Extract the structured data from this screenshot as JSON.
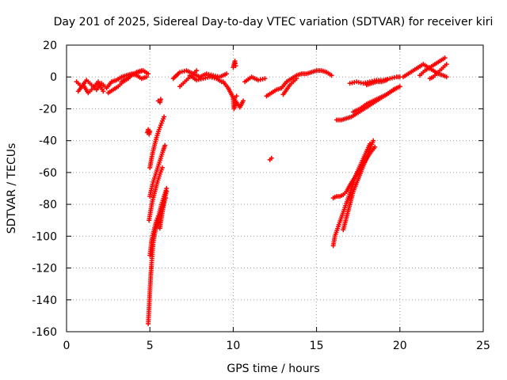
{
  "chart_data": {
    "type": "scatter",
    "title": "Day 201 of 2025, Sidereal Day-to-day VTEC variation (SDTVAR) for receiver kiri",
    "xlabel": "GPS time / hours",
    "ylabel": "SDTVAR / TECUs",
    "xlim": [
      0,
      25
    ],
    "ylim": [
      -160,
      20
    ],
    "x_ticks": [
      0,
      5,
      10,
      15,
      20,
      25
    ],
    "x_tick_labels": [
      "0",
      "5",
      "10",
      "15",
      "20",
      "25"
    ],
    "y_ticks": [
      -160,
      -140,
      -120,
      -100,
      -80,
      -60,
      -40,
      -20,
      0,
      20
    ],
    "y_tick_labels": [
      "-160",
      "-140",
      "-120",
      "-100",
      "-80",
      "-60",
      "-40",
      "-20",
      "0",
      "20"
    ],
    "grid": true,
    "marker": "plus",
    "color": "#ff0000",
    "segments": [
      {
        "x": [
          0.6,
          0.9,
          1.2,
          1.5,
          1.8,
          2.1,
          2.4,
          2.7,
          3.0,
          3.3,
          3.6,
          3.9,
          4.2,
          4.5,
          4.8
        ],
        "y": [
          -3,
          -6,
          -2,
          -5,
          -8,
          -4,
          -7,
          -3,
          -2,
          0,
          1,
          2,
          1,
          -1,
          0
        ]
      },
      {
        "x": [
          0.7,
          1.0,
          1.3,
          1.6,
          1.9,
          2.2
        ],
        "y": [
          -9,
          -5,
          -10,
          -7,
          -3,
          -9
        ]
      },
      {
        "x": [
          2.5,
          2.8,
          3.1,
          3.4,
          3.7,
          4.0,
          4.3,
          4.6,
          4.9
        ],
        "y": [
          -10,
          -8,
          -6,
          -3,
          -1,
          2,
          3,
          4,
          2
        ]
      },
      {
        "x": [
          3.3,
          3.6,
          3.9,
          4.2,
          4.5
        ],
        "y": [
          -3,
          -1,
          1,
          3,
          4
        ]
      },
      {
        "x": [
          5.0,
          4.95,
          4.9,
          4.85
        ],
        "y": [
          -34,
          -36,
          -33,
          -35
        ]
      },
      {
        "x": [
          5.5,
          5.6,
          5.65
        ],
        "y": [
          -15,
          -16,
          -14
        ]
      },
      {
        "x": [
          5.0,
          5.12,
          5.25,
          5.4,
          5.55,
          5.7,
          5.85
        ],
        "y": [
          -57,
          -50,
          -44,
          -38,
          -33,
          -29,
          -25
        ]
      },
      {
        "x": [
          5.0,
          5.1,
          5.2,
          5.35,
          5.5,
          5.65,
          5.8,
          5.9
        ],
        "y": [
          -75,
          -70,
          -66,
          -61,
          -56,
          -51,
          -46,
          -43
        ]
      },
      {
        "x": [
          4.95,
          5.05,
          5.15,
          5.3,
          5.45,
          5.6,
          5.75
        ],
        "y": [
          -90,
          -84,
          -78,
          -72,
          -66,
          -61,
          -57
        ]
      },
      {
        "x": [
          5.0,
          5.1,
          5.25,
          5.4,
          5.55,
          5.7,
          5.85,
          6.0
        ],
        "y": [
          -112,
          -103,
          -96,
          -90,
          -86,
          -80,
          -75,
          -70
        ]
      },
      {
        "x": [
          4.9,
          4.95,
          5.0,
          5.05,
          5.1,
          5.15,
          5.2,
          5.3,
          5.45,
          5.6,
          5.8,
          5.95
        ],
        "y": [
          -155,
          -145,
          -135,
          -125,
          -118,
          -110,
          -104,
          -98,
          -92,
          -86,
          -80,
          -76
        ]
      },
      {
        "x": [
          5.6,
          5.7,
          5.8,
          5.9,
          6.0
        ],
        "y": [
          -95,
          -88,
          -82,
          -76,
          -72
        ]
      },
      {
        "x": [
          6.4,
          6.8,
          7.2,
          7.6,
          8.0,
          8.4,
          8.8,
          9.2,
          9.6
        ],
        "y": [
          -1,
          3,
          4,
          2,
          0,
          2,
          1,
          0,
          2
        ]
      },
      {
        "x": [
          6.8,
          7.0,
          7.2,
          7.4,
          7.6,
          7.8
        ],
        "y": [
          -6,
          -4,
          -2,
          0,
          2,
          4
        ]
      },
      {
        "x": [
          7.4,
          7.8,
          8.2,
          8.6,
          9.0,
          9.3
        ],
        "y": [
          1,
          -2,
          -1,
          0,
          -1,
          -3
        ]
      },
      {
        "x": [
          9.4,
          9.55,
          9.7,
          9.85,
          10.0,
          10.2,
          10.4,
          10.6
        ],
        "y": [
          -3,
          -5,
          -7,
          -10,
          -13,
          -16,
          -19,
          -15
        ]
      },
      {
        "x": [
          10.0,
          10.05,
          10.1,
          10.15
        ],
        "y": [
          6,
          8,
          10,
          7
        ]
      },
      {
        "x": [
          10.1,
          10.05,
          10.0,
          10.2
        ],
        "y": [
          -18,
          -20,
          -14,
          -12
        ]
      },
      {
        "x": [
          10.7,
          11.1,
          11.5,
          11.9
        ],
        "y": [
          -3,
          0,
          -2,
          -1
        ]
      },
      {
        "x": [
          12.0,
          12.3,
          12.6,
          12.9,
          13.2,
          13.5,
          13.8,
          14.1,
          14.4,
          14.7,
          15.0,
          15.3,
          15.6,
          15.9
        ],
        "y": [
          -12,
          -10,
          -8,
          -7,
          -3,
          -1,
          1,
          2,
          2,
          3,
          4,
          4,
          3,
          1
        ]
      },
      {
        "x": [
          13.0,
          13.2,
          13.4,
          13.6,
          13.8
        ],
        "y": [
          -11,
          -8,
          -5,
          -3,
          -1
        ]
      },
      {
        "x": [
          12.2,
          12.3
        ],
        "y": [
          -52,
          -51
        ]
      },
      {
        "x": [
          16.2,
          16.5,
          16.8,
          17.1,
          17.4,
          17.7,
          18.0,
          18.3,
          18.6,
          18.9,
          19.2,
          19.5,
          19.8
        ],
        "y": [
          -27,
          -27,
          -26,
          -25,
          -23,
          -21,
          -19,
          -17,
          -15,
          -13,
          -11,
          -9,
          -7
        ]
      },
      {
        "x": [
          17.2,
          17.6,
          18.0,
          18.4,
          18.8,
          19.2,
          19.6,
          20.0
        ],
        "y": [
          -22,
          -20,
          -17,
          -15,
          -13,
          -11,
          -8,
          -6
        ]
      },
      {
        "x": [
          16.0,
          16.1,
          16.3,
          16.5,
          16.7,
          16.9,
          17.1,
          17.3,
          17.6,
          17.9,
          18.2
        ],
        "y": [
          -106,
          -100,
          -94,
          -88,
          -82,
          -76,
          -70,
          -63,
          -56,
          -49,
          -42
        ]
      },
      {
        "x": [
          16.0,
          16.2,
          16.4,
          16.6,
          16.8,
          17.0,
          17.3,
          17.6,
          17.9,
          18.2,
          18.5
        ],
        "y": [
          -76,
          -75,
          -75,
          -74,
          -72,
          -68,
          -63,
          -58,
          -53,
          -48,
          -44
        ]
      },
      {
        "x": [
          16.6,
          16.8,
          17.0,
          17.2,
          17.5,
          17.8,
          18.1,
          18.4
        ],
        "y": [
          -96,
          -88,
          -80,
          -72,
          -64,
          -56,
          -48,
          -40
        ]
      },
      {
        "x": [
          17.0,
          17.4,
          17.8,
          18.2,
          18.6,
          19.0,
          19.4,
          19.8,
          20.0
        ],
        "y": [
          -4,
          -3,
          -4,
          -3,
          -2,
          -2,
          -1,
          0,
          0
        ]
      },
      {
        "x": [
          18.0,
          18.3,
          18.6,
          18.9,
          19.2
        ],
        "y": [
          -5,
          -4,
          -3,
          -3,
          -2
        ]
      },
      {
        "x": [
          20.2,
          20.5,
          20.8,
          21.1,
          21.4,
          21.7,
          22.0,
          22.3,
          22.6,
          22.8
        ],
        "y": [
          0,
          2,
          4,
          6,
          8,
          6,
          4,
          2,
          1,
          0
        ]
      },
      {
        "x": [
          21.2,
          21.5,
          21.8,
          22.1,
          22.4,
          22.7
        ],
        "y": [
          1,
          4,
          6,
          8,
          10,
          12
        ]
      },
      {
        "x": [
          21.8,
          22.0,
          22.2,
          22.4,
          22.6,
          22.8
        ],
        "y": [
          -1,
          0,
          2,
          4,
          6,
          8
        ]
      }
    ]
  }
}
